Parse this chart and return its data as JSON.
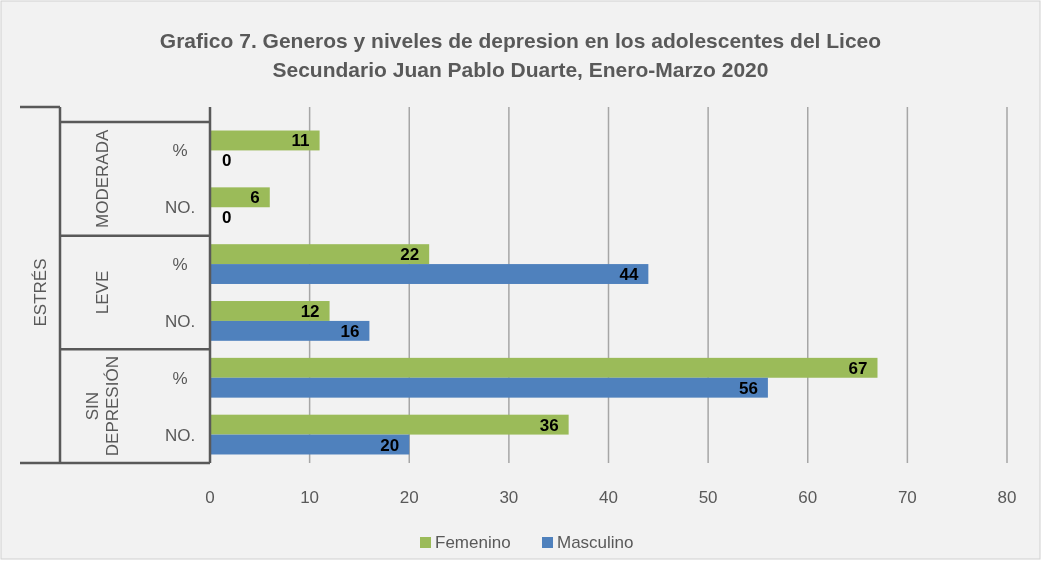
{
  "chart_data": {
    "type": "bar",
    "orientation": "horizontal",
    "title": "Grafico 7. Generos y niveles de depresion en los adolescentes del Liceo Secundario Juan Pablo Duarte, Enero-Marzo 2020",
    "categories": [
      "%",
      "NO.",
      "%",
      "NO.",
      "%",
      "NO."
    ],
    "annotations": [
      "MODERADA",
      "LEVE",
      "SIN DEPRESIÓN",
      "ESTRÉS"
    ],
    "series": [
      {
        "name": "Femenino",
        "color": "#9bbb59",
        "values": [
          11,
          6,
          22,
          12,
          67,
          36
        ]
      },
      {
        "name": "Masculino",
        "color": "#4f81bd",
        "values": [
          0,
          0,
          44,
          16,
          56,
          20
        ]
      }
    ],
    "xlim": [
      0,
      80
    ],
    "xticks": [
      0,
      10,
      20,
      30,
      40,
      50,
      60,
      70,
      80
    ],
    "grid": "x",
    "data_labels": true,
    "legend": "bottom"
  }
}
